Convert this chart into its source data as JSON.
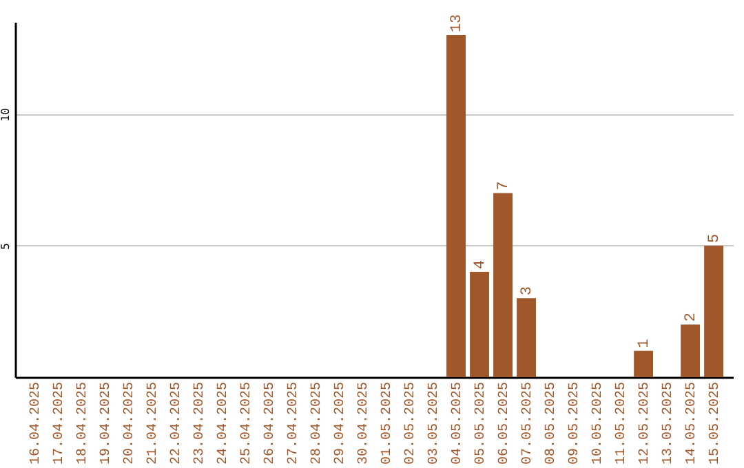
{
  "chart_data": {
    "type": "bar",
    "categories": [
      "16.04.2025",
      "17.04.2025",
      "18.04.2025",
      "19.04.2025",
      "20.04.2025",
      "21.04.2025",
      "22.04.2025",
      "23.04.2025",
      "24.04.2025",
      "25.04.2025",
      "26.04.2025",
      "27.04.2025",
      "28.04.2025",
      "29.04.2025",
      "30.04.2025",
      "01.05.2025",
      "02.05.2025",
      "03.05.2025",
      "04.05.2025",
      "05.05.2025",
      "06.05.2025",
      "07.05.2025",
      "08.05.2025",
      "09.05.2025",
      "10.05.2025",
      "11.05.2025",
      "12.05.2025",
      "13.05.2025",
      "14.05.2025",
      "15.05.2025"
    ],
    "values": [
      0,
      0,
      0,
      0,
      0,
      0,
      0,
      0,
      0,
      0,
      0,
      0,
      0,
      0,
      0,
      0,
      0,
      0,
      13,
      4,
      7,
      3,
      0,
      0,
      0,
      0,
      1,
      0,
      2,
      5
    ],
    "value_labels": [
      null,
      null,
      null,
      null,
      null,
      null,
      null,
      null,
      null,
      null,
      null,
      null,
      null,
      null,
      null,
      null,
      null,
      null,
      "13",
      "4",
      "7",
      "3",
      null,
      null,
      null,
      null,
      "1",
      null,
      "2",
      "5"
    ],
    "color": "#a0572a",
    "ylim": [
      0,
      13.5
    ],
    "yticks": [
      5,
      10
    ],
    "grid": "y"
  }
}
